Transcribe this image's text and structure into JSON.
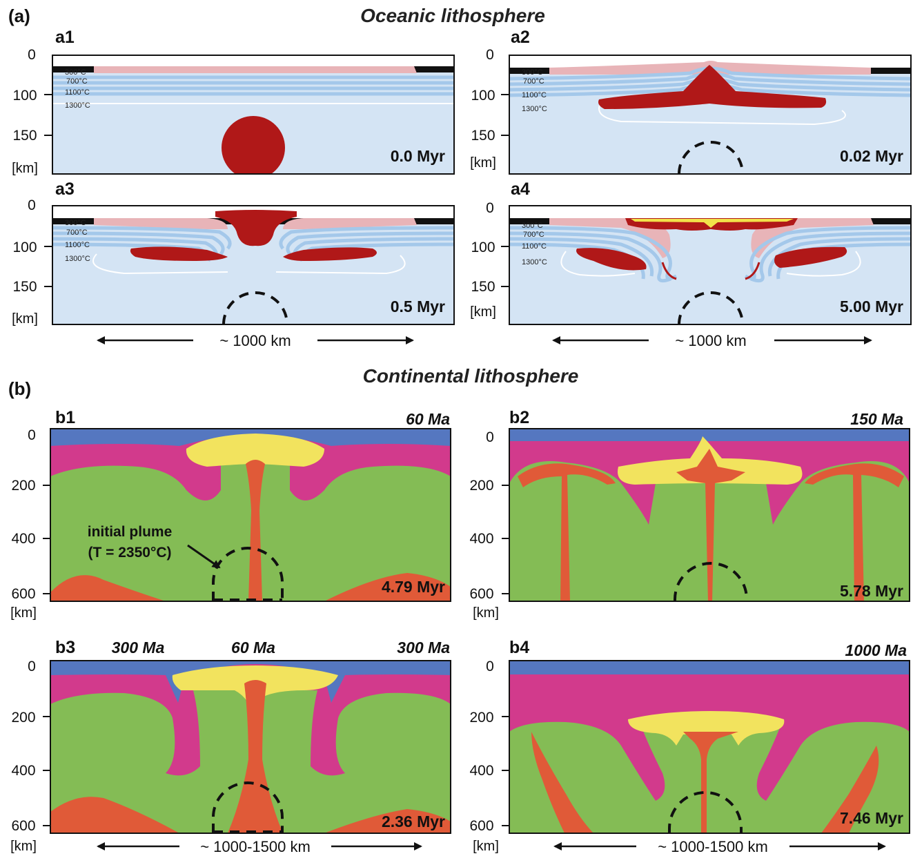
{
  "section_a": {
    "label": "(a)",
    "title": "Oceanic lithosphere",
    "scale_text": "~ 1000 km",
    "ticks": [
      "0",
      "100",
      "150",
      "[km]"
    ],
    "isotherms": [
      "300°C",
      "700°C",
      "1100°C",
      "1300°C"
    ],
    "panels": [
      {
        "id": "a1",
        "time": "0.0 Myr"
      },
      {
        "id": "a2",
        "time": "0.02 Myr"
      },
      {
        "id": "a3",
        "time": "0.5 Myr"
      },
      {
        "id": "a4",
        "time": "5.00 Myr"
      }
    ]
  },
  "section_b": {
    "label": "(b)",
    "title": "Continental lithosphere",
    "scale_text": "~ 1000-1500 km",
    "ticks": [
      "0",
      "200",
      "400",
      "600",
      "[km]"
    ],
    "plume_note_line1": "initial plume",
    "plume_note_line2": "(T = 2350°C)",
    "panels": [
      {
        "id": "b1",
        "time": "4.79 Myr",
        "ages": [
          "60 Ma"
        ]
      },
      {
        "id": "b2",
        "time": "5.78 Myr",
        "ages": [
          "150 Ma"
        ]
      },
      {
        "id": "b3",
        "time": "2.36 Myr",
        "ages": [
          "300 Ma",
          "60 Ma",
          "300 Ma"
        ]
      },
      {
        "id": "b4",
        "time": "7.46 Myr",
        "ages": [
          "1000 Ma"
        ]
      }
    ]
  },
  "colors": {
    "ocean_mantle": "#d4e4f4",
    "isotherm_band": "#a4c8ea",
    "crust": "#e8b4b8",
    "plume_red": "#b01818",
    "melt_yellow": "#f2e24a",
    "cont_water": "#5577c0",
    "cont_lith": "#d23a8c",
    "cont_mantle": "#84bc55",
    "cont_plume": "#e05a38",
    "cont_melt": "#f2e35e"
  }
}
